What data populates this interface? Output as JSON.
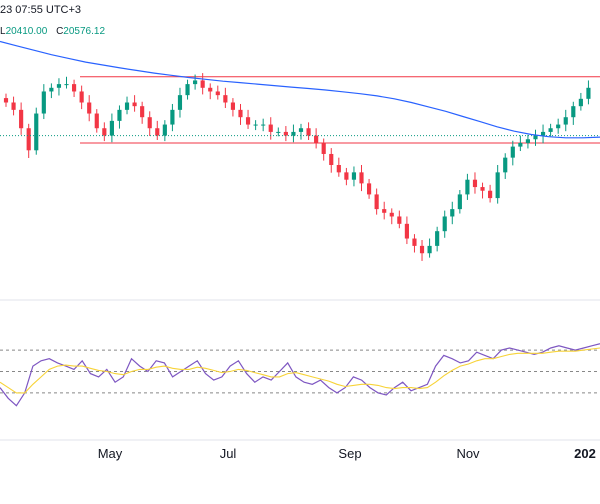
{
  "header": {
    "timestamp": "23 07:55 UTC+3",
    "low_label": "L",
    "low_value": "20410.00",
    "close_label": "C",
    "close_value": "20576.12"
  },
  "colors": {
    "up": "#089981",
    "down": "#f23645",
    "ma": "#2962ff",
    "hline": "#f23645",
    "rsi": "#7e57c2",
    "rsi_ma": "#f7d338",
    "grid_dots": "#888888"
  },
  "chart_data": [
    {
      "type": "candlestick",
      "title": "",
      "x_ticks": [
        "May",
        "Jul",
        "Sep",
        "Nov",
        "202"
      ],
      "y_range": [
        18800,
        22200
      ],
      "horizontal_levels": [
        21700,
        20800
      ],
      "overlays": [
        {
          "name": "",
          "type": "moving-average",
          "color": "#2962ff",
          "values": [
            22180,
            22120,
            22060,
            22000,
            21950,
            21900,
            21860,
            21820,
            21785,
            21750,
            21720,
            21690,
            21665,
            21640,
            21620,
            21600,
            21580,
            21560,
            21540,
            21520,
            21495,
            21470,
            21440,
            21400,
            21350,
            21290,
            21230,
            21160,
            21090,
            21020,
            20960,
            20915,
            20885,
            20870,
            20870,
            20880
          ]
        }
      ],
      "candles_close": [
        21350,
        21250,
        21000,
        20700,
        21200,
        21500,
        21550,
        21600,
        21600,
        21500,
        21350,
        21200,
        21000,
        20900,
        21100,
        21250,
        21350,
        21300,
        21150,
        21000,
        20900,
        21050,
        21250,
        21450,
        21600,
        21650,
        21550,
        21500,
        21450,
        21350,
        21250,
        21150,
        21050,
        21050,
        21050,
        20950,
        20950,
        20900,
        20950,
        21000,
        20900,
        20800,
        20650,
        20500,
        20400,
        20300,
        20400,
        20250,
        20100,
        19900,
        19850,
        19800,
        19700,
        19500,
        19400,
        19300,
        19400,
        19600,
        19800,
        19900,
        20100,
        20300,
        20200,
        20150,
        20050,
        20400,
        20600,
        20750,
        20800,
        20850,
        20900,
        20950,
        21000,
        21050,
        21150,
        21300,
        21400,
        21550
      ]
    },
    {
      "type": "line",
      "title": "",
      "y_range": [
        0,
        100
      ],
      "reference_levels": [
        70,
        50,
        30
      ],
      "series": [
        {
          "name": "",
          "color": "#7e57c2",
          "values": [
            35,
            25,
            18,
            30,
            55,
            60,
            62,
            58,
            55,
            52,
            60,
            48,
            45,
            52,
            40,
            45,
            62,
            55,
            50,
            60,
            58,
            45,
            50,
            55,
            60,
            48,
            42,
            45,
            55,
            60,
            48,
            40,
            45,
            42,
            50,
            58,
            45,
            40,
            38,
            42,
            35,
            30,
            35,
            45,
            42,
            35,
            30,
            28,
            35,
            40,
            32,
            35,
            38,
            55,
            65,
            62,
            58,
            60,
            68,
            65,
            62,
            70,
            72,
            70,
            68,
            66,
            68,
            72,
            74,
            72,
            70,
            72,
            74,
            76
          ]
        },
        {
          "name": "",
          "color": "#f7d338",
          "values": [
            40,
            35,
            30,
            30,
            38,
            45,
            52,
            55,
            56,
            55,
            55,
            53,
            51,
            50,
            48,
            47,
            50,
            52,
            52,
            54,
            55,
            53,
            52,
            52,
            54,
            53,
            51,
            49,
            50,
            52,
            51,
            49,
            47,
            45,
            45,
            48,
            49,
            47,
            45,
            43,
            41,
            38,
            36,
            37,
            38,
            38,
            37,
            35,
            34,
            35,
            35,
            34,
            35,
            40,
            46,
            51,
            55,
            57,
            60,
            62,
            62,
            64,
            66,
            67,
            67,
            67,
            67,
            68,
            69,
            69,
            69,
            70,
            71,
            72
          ]
        }
      ]
    }
  ]
}
